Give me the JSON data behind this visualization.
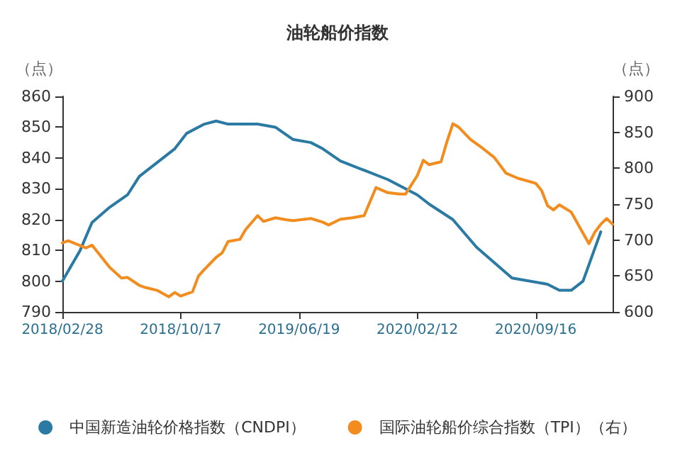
{
  "chart_data": {
    "type": "line",
    "title": "油轮船价指数",
    "ylabel": "（点）",
    "y2label": "（点）",
    "categories": [
      "2018/02/28",
      null,
      null,
      null,
      null,
      null,
      null,
      null,
      null,
      null,
      null,
      null,
      null,
      null,
      null,
      null,
      null,
      null,
      null,
      null,
      "2018/10/17",
      null,
      null,
      null,
      null,
      null,
      null,
      null,
      null,
      null,
      null,
      null,
      null,
      null,
      null,
      null,
      null,
      null,
      null,
      null,
      "2019/06/19",
      null,
      null,
      null,
      null,
      null,
      null,
      null,
      null,
      null,
      null,
      null,
      null,
      null,
      null,
      null,
      null,
      null,
      null,
      null,
      "2020/02/12",
      null,
      null,
      null,
      null,
      null,
      null,
      null,
      null,
      null,
      null,
      null,
      null,
      null,
      null,
      null,
      null,
      null,
      null,
      null,
      "2020/09/16",
      null,
      null,
      null,
      null,
      null,
      null,
      null,
      null,
      null,
      null,
      null,
      null,
      null
    ],
    "series": [
      {
        "name": "中国新造油轮价格指数（CNDPI）",
        "color": "#2a7aa3",
        "values": [
          800,
          null,
          null,
          810,
          null,
          819,
          null,
          null,
          824,
          null,
          null,
          828,
          null,
          834,
          null,
          null,
          null,
          840,
          null,
          843,
          null,
          848,
          null,
          null,
          851,
          null,
          852,
          null,
          851,
          null,
          null,
          null,
          null,
          851,
          null,
          null,
          850,
          null,
          null,
          846,
          null,
          null,
          845,
          null,
          843,
          null,
          null,
          839,
          null,
          null,
          null,
          836,
          null,
          null,
          null,
          833,
          null,
          null,
          null,
          null,
          828,
          null,
          825,
          null,
          null,
          null,
          820,
          null,
          null,
          null,
          811,
          null,
          null,
          806,
          null,
          null,
          801,
          null,
          null,
          null,
          null,
          null,
          799,
          null,
          797,
          null,
          797,
          null,
          800,
          null,
          null,
          816,
          null,
          null
        ]
      },
      {
        "name": "国际油轮船价综合指数（TPI）（右）",
        "color": "#f28c1e",
        "axis": "y2",
        "values": [
          696,
          699,
          null,
          null,
          689,
          693,
          null,
          null,
          662,
          null,
          647,
          648,
          null,
          637,
          634,
          null,
          630,
          null,
          621,
          627,
          622,
          null,
          628,
          650,
          659,
          null,
          676,
          682,
          698,
          null,
          701,
          715,
          null,
          734,
          726,
          null,
          731,
          null,
          728,
          727,
          null,
          null,
          730,
          null,
          725,
          721,
          null,
          729,
          null,
          731,
          null,
          734,
          null,
          773,
          null,
          766,
          null,
          764,
          764,
          null,
          790,
          811,
          805,
          null,
          809,
          837,
          862,
          857,
          null,
          840,
          null,
          828,
          null,
          815,
          null,
          793,
          null,
          786,
          null,
          null,
          779,
          769,
          748,
          742,
          749,
          null,
          739,
          null,
          null,
          695,
          711,
          722,
          730,
          722
        ]
      }
    ],
    "ylim": [
      790,
      860
    ],
    "yticks": [
      790,
      800,
      810,
      820,
      830,
      840,
      850,
      860
    ],
    "y2lim": [
      600,
      900
    ],
    "y2ticks": [
      600,
      650,
      700,
      750,
      800,
      850,
      900
    ],
    "grid": false,
    "legend": "bottom",
    "marker": "none",
    "line_style": "solid"
  }
}
